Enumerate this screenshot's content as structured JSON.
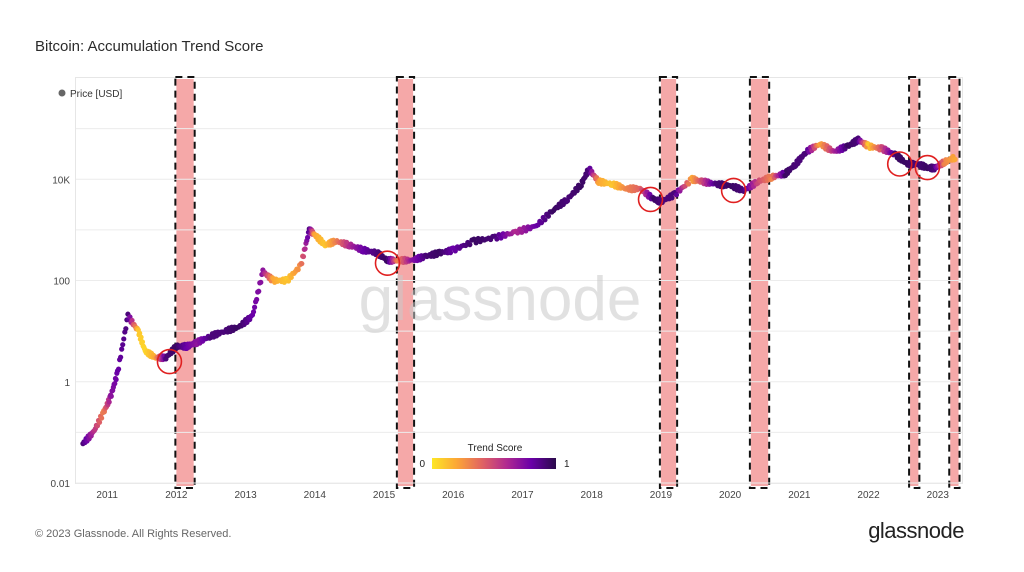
{
  "title": "Bitcoin: Accumulation Trend Score",
  "footer": {
    "copyright": "© 2023 Glassnode. All Rights Reserved.",
    "brand": "glassnode"
  },
  "watermark": "glassnode",
  "chart_data": {
    "type": "scatter",
    "title": "Bitcoin: Accumulation Trend Score",
    "yscale": "log",
    "ylim": [
      0.01,
      1000000
    ],
    "y_tick_labels": [
      "0.01",
      "1",
      "100",
      "10K"
    ],
    "x_tick_labels": [
      "2011",
      "2012",
      "2013",
      "2014",
      "2015",
      "2016",
      "2017",
      "2018",
      "2019",
      "2020",
      "2021",
      "2022",
      "2023"
    ],
    "legend": {
      "series": "Price [USD]",
      "placement": "top-left"
    },
    "colorbar": {
      "title": "Trend Score",
      "min_label": "0",
      "max_label": "1",
      "colors": [
        "#fde725",
        "#fca636",
        "#e16462",
        "#b12a90",
        "#6a00a8",
        "#2a0a4a"
      ]
    },
    "series": [
      {
        "name": "Price [USD]",
        "x": [
          2010.65,
          2010.8,
          2010.95,
          2011.05,
          2011.15,
          2011.3,
          2011.45,
          2011.55,
          2011.7,
          2011.85,
          2012.0,
          2012.15,
          2012.3,
          2012.5,
          2012.7,
          2012.9,
          2013.1,
          2013.25,
          2013.4,
          2013.6,
          2013.8,
          2013.92,
          2014.0,
          2014.15,
          2014.3,
          2014.5,
          2014.7,
          2014.9,
          2015.05,
          2015.2,
          2015.4,
          2015.6,
          2015.8,
          2016.0,
          2016.3,
          2016.6,
          2016.9,
          2017.2,
          2017.45,
          2017.65,
          2017.85,
          2017.96,
          2018.1,
          2018.3,
          2018.5,
          2018.7,
          2018.9,
          2019.0,
          2019.2,
          2019.45,
          2019.6,
          2019.8,
          2020.0,
          2020.2,
          2020.4,
          2020.6,
          2020.8,
          2020.95,
          2021.1,
          2021.3,
          2021.5,
          2021.7,
          2021.85,
          2022.0,
          2022.2,
          2022.4,
          2022.55,
          2022.7,
          2022.85,
          2022.95,
          2023.1,
          2023.25
        ],
        "y": [
          0.06,
          0.1,
          0.25,
          0.5,
          1.5,
          20,
          10,
          4,
          3,
          3,
          5,
          5,
          6,
          8,
          10,
          12,
          20,
          150,
          100,
          100,
          200,
          1000,
          800,
          500,
          600,
          500,
          400,
          350,
          250,
          250,
          250,
          300,
          350,
          400,
          600,
          700,
          900,
          1200,
          2500,
          4000,
          8000,
          16000,
          9000,
          8000,
          6500,
          6500,
          4000,
          3600,
          5000,
          10000,
          9000,
          8000,
          7500,
          6000,
          9000,
          11000,
          13000,
          20000,
          35000,
          50000,
          35000,
          45000,
          60000,
          45000,
          40000,
          30000,
          20000,
          20000,
          17000,
          16500,
          22000,
          27000
        ],
        "score": [
          0.9,
          0.6,
          0.3,
          0.7,
          0.8,
          0.9,
          0.1,
          0.05,
          0.2,
          0.9,
          0.95,
          0.8,
          0.7,
          0.9,
          0.9,
          0.95,
          0.8,
          0.7,
          0.2,
          0.1,
          0.3,
          0.9,
          0.2,
          0.1,
          0.3,
          0.6,
          0.8,
          0.9,
          0.95,
          0.3,
          0.7,
          0.9,
          0.95,
          0.8,
          0.95,
          0.9,
          0.6,
          0.8,
          0.95,
          0.9,
          0.95,
          0.9,
          0.2,
          0.1,
          0.3,
          0.4,
          0.95,
          0.9,
          0.9,
          0.2,
          0.5,
          0.9,
          0.95,
          0.9,
          0.5,
          0.3,
          0.95,
          0.9,
          0.9,
          0.2,
          0.6,
          0.95,
          0.9,
          0.1,
          0.5,
          0.95,
          0.95,
          0.9,
          0.95,
          0.9,
          0.3,
          0.2
        ]
      }
    ],
    "annotations": {
      "shaded_periods": [
        [
          2012.0,
          2012.25
        ],
        [
          2015.2,
          2015.42
        ],
        [
          2019.0,
          2019.22
        ],
        [
          2020.3,
          2020.55
        ],
        [
          2022.6,
          2022.72
        ],
        [
          2023.18,
          2023.3
        ]
      ],
      "circles": [
        {
          "x": 2011.9,
          "y": 2.5
        },
        {
          "x": 2015.05,
          "y": 220
        },
        {
          "x": 2018.85,
          "y": 4000
        },
        {
          "x": 2020.05,
          "y": 6000
        },
        {
          "x": 2022.45,
          "y": 20000
        },
        {
          "x": 2022.85,
          "y": 17000
        }
      ]
    },
    "colors": {
      "shade": "#f5a8a8",
      "circle": "#e02020",
      "dash": "#111111"
    }
  }
}
